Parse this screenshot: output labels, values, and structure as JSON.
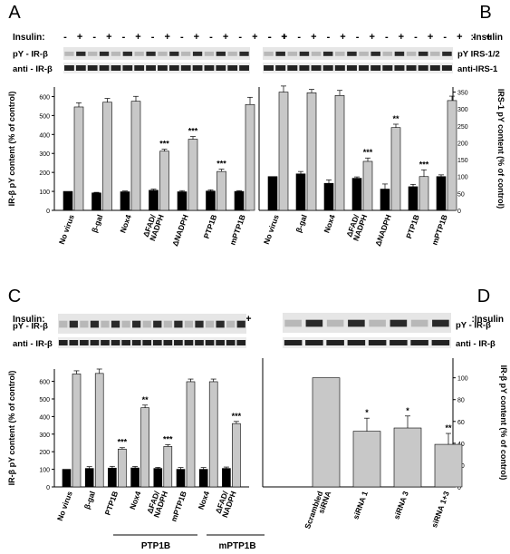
{
  "panels": {
    "A": {
      "letter": "A",
      "insulin_label": "Insulin:",
      "signs": [
        "-",
        "+",
        "-",
        "+",
        "-",
        "+",
        "-",
        "+",
        "-",
        "+",
        "-",
        "+",
        "-",
        "+",
        "-",
        "+"
      ],
      "blot_labels": [
        "pY - IR-β",
        "anti - IR-β"
      ]
    },
    "B": {
      "letter": "B",
      "insulin_label": ":Insulin",
      "signs": [
        "-",
        "+",
        "-",
        "+",
        "-",
        "+",
        "-",
        "+",
        "-",
        "+",
        "-",
        "+",
        "-",
        "+",
        "-",
        "+"
      ],
      "blot_labels": [
        "pY IRS-1/2",
        "anti-IRS-1"
      ]
    },
    "C": {
      "letter": "C",
      "insulin_label": "Insulin:",
      "signs": [
        "-",
        "+",
        "-",
        "+",
        "-",
        "+",
        "-",
        "+",
        "-",
        "+",
        "-",
        "+",
        "-",
        "+",
        "-",
        "+",
        "-",
        "+"
      ],
      "blot_labels": [
        "pY - IR-β",
        "anti - IR-β"
      ],
      "groups": [
        "PTP1B",
        "mPTP1B"
      ]
    },
    "D": {
      "letter": "D",
      "insulin_label": ":Insulin",
      "signs": [
        "-",
        "+",
        "-",
        "+",
        "-",
        "+",
        "-",
        "+"
      ],
      "blot_labels": [
        "pY - IR-β",
        "anti - IR-β"
      ]
    }
  },
  "chart_data": [
    {
      "id": "A",
      "type": "bar",
      "categories": [
        "No virus",
        "β-gal",
        "Nox4",
        "ΔFAD/\nNADPH",
        "ΔNADPH",
        "PTP1B",
        "mPTP1B"
      ],
      "ylabel": "IR-β pY content (% of control)",
      "ylim": [
        0,
        650
      ],
      "yticks": [
        0,
        100,
        200,
        300,
        400,
        500,
        600
      ],
      "series": [
        {
          "name": "-",
          "color": "#000000",
          "values": [
            100,
            92,
            98,
            106,
            98,
            102,
            100
          ],
          "errors": [
            0,
            3,
            4,
            6,
            6,
            6,
            4
          ]
        },
        {
          "name": "+",
          "color": "#c8c8c8",
          "values": [
            545,
            570,
            575,
            312,
            375,
            205,
            558
          ],
          "errors": [
            22,
            20,
            26,
            10,
            14,
            12,
            38
          ]
        }
      ],
      "significance": [
        "",
        "",
        "",
        "***",
        "***",
        "***",
        ""
      ]
    },
    {
      "id": "B",
      "type": "bar",
      "categories": [
        "No virus",
        "β-gal",
        "Nox4",
        "ΔFAD/\nNADPH",
        "ΔNADPH",
        "PTP1B",
        "mPTP1B"
      ],
      "ylabel": "IRS-1 pY content (% of control)",
      "ylim": [
        0,
        365
      ],
      "yticks": [
        0,
        50,
        100,
        150,
        200,
        250,
        300,
        350
      ],
      "series": [
        {
          "name": "-",
          "color": "#000000",
          "values": [
            100,
            108,
            80,
            95,
            63,
            70,
            100
          ],
          "errors": [
            0,
            7,
            10,
            4,
            15,
            7,
            5
          ]
        },
        {
          "name": "+",
          "color": "#c8c8c8",
          "values": [
            350,
            348,
            340,
            145,
            245,
            100,
            325
          ],
          "errors": [
            18,
            10,
            15,
            10,
            10,
            20,
            13
          ]
        }
      ],
      "significance": [
        "",
        "",
        "",
        "***",
        "**",
        "***",
        ""
      ]
    },
    {
      "id": "C",
      "type": "bar",
      "categories": [
        "No virus",
        "β-gal",
        "PTP1B",
        "Nox4",
        "ΔFAD/\nNADPH",
        "mPTP1B",
        "Nox4",
        "ΔFAD/\nNADPH"
      ],
      "ylabel": "IR-β pY content (% of control)",
      "ylim": [
        0,
        670
      ],
      "yticks": [
        0,
        100,
        200,
        300,
        400,
        500,
        600
      ],
      "series": [
        {
          "name": "-",
          "color": "#000000",
          "values": [
            100,
            105,
            107,
            108,
            105,
            100,
            100,
            105
          ],
          "errors": [
            0,
            10,
            10,
            8,
            6,
            10,
            10,
            8
          ]
        },
        {
          "name": "+",
          "color": "#c8c8c8",
          "values": [
            642,
            645,
            215,
            450,
            230,
            598,
            598,
            360
          ],
          "errors": [
            18,
            25,
            8,
            15,
            10,
            15,
            15,
            12
          ]
        }
      ],
      "significance": [
        "",
        "",
        "***",
        "**",
        "***",
        "",
        "",
        "***"
      ]
    },
    {
      "id": "D",
      "type": "bar",
      "categories": [
        "Scrambled\nsiRNA",
        "siRNA 1",
        "siRNA 3",
        "siRNA 1+3"
      ],
      "ylabel": "IR-β pY content (% of control)",
      "ylim": [
        0,
        118
      ],
      "yticks": [
        0,
        20,
        40,
        60,
        80,
        100
      ],
      "series": [
        {
          "name": "",
          "color": "#c8c8c8",
          "values": [
            100,
            51,
            54,
            39
          ],
          "errors": [
            0,
            12,
            11,
            10
          ]
        }
      ],
      "significance": [
        "",
        "*",
        "*",
        "**"
      ]
    }
  ]
}
